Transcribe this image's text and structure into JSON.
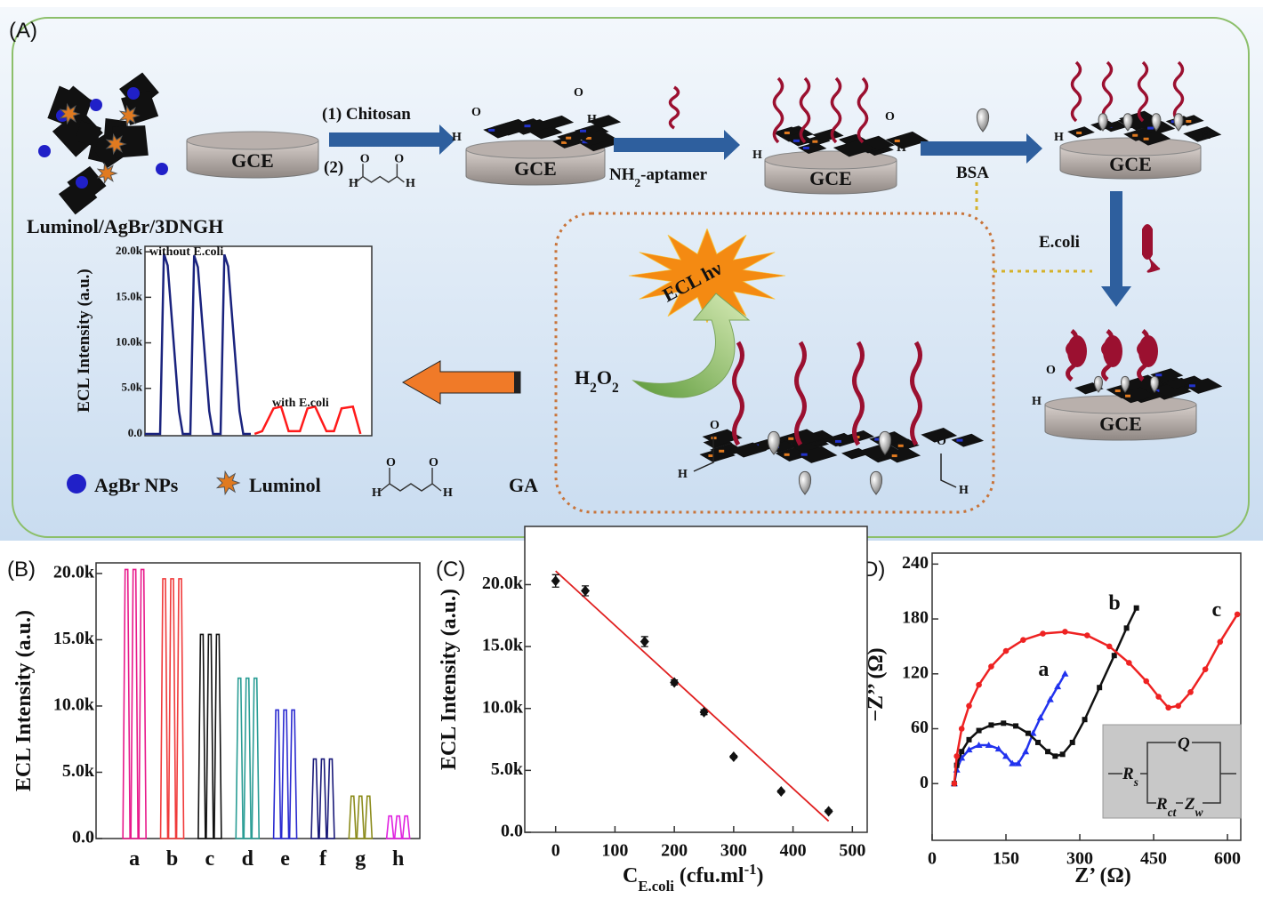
{
  "panels": [
    "(A)",
    "(B)",
    "(C)",
    "(D)"
  ],
  "scheme": {
    "electrode": "GCE",
    "step1": "(1)  Chitosan",
    "step2": "(2)",
    "aptamer": {
      "main": "NH",
      "sub": "2",
      "rest": "-aptamer"
    },
    "bsa": "BSA",
    "target": "E.coli",
    "material": "Luminol/AgBr/3DNGH",
    "legend": [
      "AgBr NPs",
      "Luminol",
      "GA"
    ],
    "ecl": "ECL  hν",
    "h2o2": {
      "a": "H",
      "s1": "2",
      "b": "O",
      "s2": "2"
    },
    "atoms": [
      "O",
      "H"
    ]
  },
  "circuit": {
    "q": "Q",
    "rs": {
      "main": "R",
      "sub": "s"
    },
    "rct": {
      "main": "R",
      "sub": "ct"
    },
    "zw": {
      "main": "Z",
      "sub": "w"
    }
  },
  "chart_data": [
    {
      "type": "line",
      "ylabel": "ECL Intensity (a.u.)",
      "xlim": [
        0,
        60
      ],
      "ylim": [
        -200,
        20600
      ],
      "yticks": [
        {
          "value": 0,
          "label": "0.0"
        },
        {
          "value": 5000,
          "label": "5.0k"
        },
        {
          "value": 10000,
          "label": "10.0k"
        },
        {
          "value": 15000,
          "label": "15.0k"
        },
        {
          "value": 20000,
          "label": "20.0k"
        }
      ],
      "series": [
        {
          "name": "without E.coli",
          "color": "#1a237e",
          "x": [
            0,
            4,
            5,
            6,
            9,
            10,
            12,
            13,
            14,
            17,
            18,
            20,
            21,
            22,
            25,
            26,
            28
          ],
          "values": [
            0,
            0,
            19800,
            18500,
            2500,
            0,
            0,
            19600,
            18300,
            2500,
            0,
            0,
            19700,
            18400,
            2500,
            0,
            0
          ]
        },
        {
          "name": "with E.coli",
          "color": "#ff1a1a",
          "x": [
            29,
            31,
            34,
            36,
            38,
            41,
            43,
            45,
            48,
            50,
            52,
            55,
            57
          ],
          "values": [
            0,
            300,
            2800,
            3000,
            300,
            300,
            2800,
            3000,
            300,
            300,
            2800,
            3000,
            0
          ]
        }
      ]
    },
    {
      "type": "bar",
      "ylabel": "ECL Intensity (a.u.)",
      "categories": [
        "a",
        "b",
        "c",
        "d",
        "e",
        "f",
        "g",
        "h"
      ],
      "values": [
        20300,
        19600,
        15400,
        12100,
        9700,
        6000,
        3200,
        1700
      ],
      "colors": [
        "#e8198b",
        "#f03a3a",
        "#111111",
        "#2a9d95",
        "#2a2ad0",
        "#1a1a7a",
        "#8b8b1a",
        "#e020e0"
      ],
      "ylim": [
        0,
        20800
      ],
      "yticks": [
        {
          "value": 0,
          "label": "0.0"
        },
        {
          "value": 5000,
          "label": "5.0k"
        },
        {
          "value": 10000,
          "label": "10.0k"
        },
        {
          "value": 15000,
          "label": "15.0k"
        },
        {
          "value": 20000,
          "label": "20.0k"
        }
      ]
    },
    {
      "type": "scatter",
      "ylabel": "ECL Intensity (a.u.)",
      "xlabel": {
        "main": "C",
        "sub": "E.coli",
        "rest": " (cfu.ml",
        "sup": "-1",
        "end": ")"
      },
      "x": [
        0,
        50,
        150,
        200,
        250,
        300,
        380,
        460
      ],
      "values": [
        20300,
        19500,
        15400,
        12100,
        9700,
        6100,
        3300,
        1700
      ],
      "errors": [
        500,
        400,
        400,
        200,
        200,
        100,
        100,
        100
      ],
      "fit": {
        "color": "#e02020",
        "x": [
          0,
          460
        ],
        "values": [
          21100,
          900
        ]
      },
      "color": "#111111",
      "xlim": [
        -52,
        525
      ],
      "ylim": [
        0,
        24700
      ],
      "xticks": [
        0,
        100,
        200,
        300,
        400,
        500
      ],
      "yticks": [
        {
          "value": 0,
          "label": "0.0"
        },
        {
          "value": 5000,
          "label": "5.0k"
        },
        {
          "value": 10000,
          "label": "10.0k"
        },
        {
          "value": 15000,
          "label": "15.0k"
        },
        {
          "value": 20000,
          "label": "20.0k"
        }
      ]
    },
    {
      "type": "scatter",
      "xlabel": "Z’ (Ω)",
      "ylabel": "−Z’’ (Ω)",
      "xlim": [
        0,
        627
      ],
      "ylim": [
        -62,
        252
      ],
      "xticks": [
        0,
        150,
        300,
        450,
        600
      ],
      "yticks": [
        0,
        60,
        120,
        180,
        240
      ],
      "series": [
        {
          "name": "a",
          "color": "#2233ee",
          "marker": "triangle",
          "x": [
            45,
            50,
            60,
            75,
            95,
            115,
            135,
            150,
            163,
            175,
            190,
            205,
            220,
            240,
            255,
            270
          ],
          "values": [
            0,
            15,
            28,
            37,
            42,
            42,
            38,
            30,
            22,
            22,
            35,
            55,
            72,
            92,
            106,
            120
          ]
        },
        {
          "name": "b",
          "color": "#111111",
          "marker": "square",
          "x": [
            45,
            50,
            60,
            75,
            95,
            120,
            145,
            170,
            195,
            215,
            235,
            250,
            265,
            285,
            310,
            340,
            370,
            395,
            415
          ],
          "values": [
            0,
            20,
            35,
            48,
            58,
            64,
            66,
            63,
            55,
            45,
            35,
            30,
            32,
            45,
            70,
            105,
            140,
            170,
            192
          ]
        },
        {
          "name": "c",
          "color": "#ee2222",
          "marker": "circle",
          "x": [
            45,
            50,
            60,
            75,
            95,
            120,
            150,
            185,
            225,
            270,
            315,
            360,
            400,
            435,
            460,
            480,
            500,
            525,
            555,
            585,
            620
          ],
          "values": [
            0,
            30,
            60,
            85,
            108,
            128,
            145,
            157,
            164,
            166,
            162,
            150,
            132,
            112,
            95,
            83,
            85,
            100,
            125,
            155,
            185
          ]
        }
      ]
    }
  ]
}
